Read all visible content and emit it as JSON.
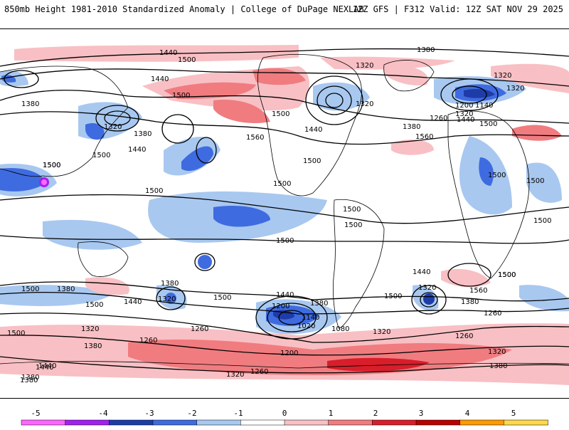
{
  "header": {
    "title_left": "850mb Height 1981-2010 Standardized Anomaly | College of DuPage NEXLAB",
    "title_right": "12Z GFS | F312 Valid: 12Z SAT NOV 29 2025"
  },
  "map": {
    "contour_labels": [
      "1440",
      "1500",
      "1380",
      "1320",
      "1440",
      "1500",
      "1500",
      "1380",
      "1500",
      "1320",
      "1440",
      "1500",
      "1440",
      "1500",
      "1380",
      "1500",
      "1320",
      "1320",
      "1560",
      "1500",
      "1500",
      "1500",
      "1500",
      "1500",
      "1500",
      "1500",
      "1380",
      "1320",
      "1260",
      "1200",
      "1140",
      "1320",
      "1440",
      "1500",
      "1560",
      "1500",
      "1500",
      "1500",
      "1500",
      "1440",
      "1500",
      "1380",
      "1500",
      "1440",
      "1320",
      "1380",
      "1500",
      "1440",
      "1380",
      "1200",
      "1140",
      "1020",
      "1080",
      "1440",
      "1320",
      "1380",
      "1500",
      "1560",
      "1320",
      "1380",
      "1260",
      "1260",
      "1260",
      "1320",
      "1200",
      "1260",
      "1380",
      "1320",
      "1260",
      "1320",
      "1380",
      "1440",
      "1380"
    ]
  },
  "colorbar": {
    "labels": [
      "-5",
      "-4",
      "-3",
      "-2",
      "-1",
      "0",
      "1",
      "2",
      "3",
      "4",
      "5"
    ],
    "colors": [
      "#ff66ff",
      "#a020f0",
      "#1e3ca8",
      "#3f6be0",
      "#a8c8f0",
      "#ffffff",
      "#f8c0c4",
      "#f07c80",
      "#d81e2a",
      "#b80000",
      "#ff9a00",
      "#ffd84a"
    ]
  }
}
